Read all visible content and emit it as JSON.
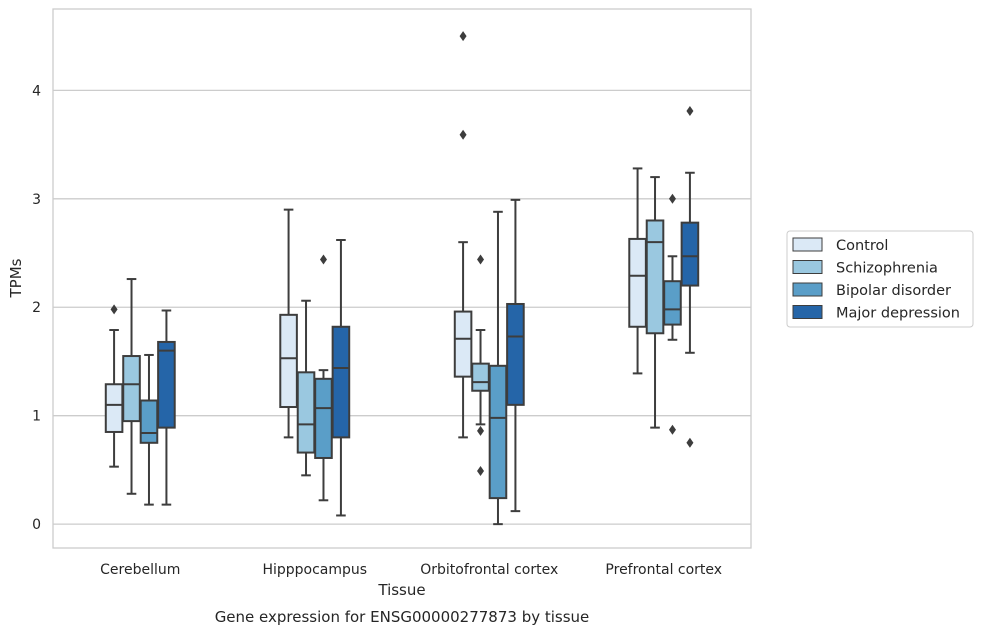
{
  "chart_data": {
    "type": "box",
    "title": "Gene expression for ENSG00000277873 by tissue",
    "xlabel": "Tissue",
    "ylabel": "TPMs",
    "ylim": [
      -0.22,
      4.75
    ],
    "yticks": [
      0,
      1,
      2,
      3,
      4
    ],
    "grid": "horizontal",
    "legend_position": "right",
    "categories": [
      "Cerebellum",
      "Hipppocampus",
      "Orbitofrontal cortex",
      "Prefrontal cortex"
    ],
    "series": [
      {
        "name": "Control",
        "color": "#dbe9f6",
        "boxes": [
          {
            "whislo": 0.53,
            "q1": 0.85,
            "med": 1.1,
            "q3": 1.29,
            "whishi": 1.79,
            "fliers": [
              1.98
            ]
          },
          {
            "whislo": 0.8,
            "q1": 1.08,
            "med": 1.53,
            "q3": 1.93,
            "whishi": 2.9,
            "fliers": []
          },
          {
            "whislo": 0.8,
            "q1": 1.36,
            "med": 1.71,
            "q3": 1.96,
            "whishi": 2.6,
            "fliers": [
              3.59,
              4.5
            ]
          },
          {
            "whislo": 1.39,
            "q1": 1.82,
            "med": 2.29,
            "q3": 2.63,
            "whishi": 3.28,
            "fliers": []
          }
        ]
      },
      {
        "name": "Schizophrenia",
        "color": "#9ac8e0",
        "boxes": [
          {
            "whislo": 0.28,
            "q1": 0.95,
            "med": 1.29,
            "q3": 1.55,
            "whishi": 2.26,
            "fliers": []
          },
          {
            "whislo": 0.45,
            "q1": 0.66,
            "med": 0.92,
            "q3": 1.4,
            "whishi": 2.06,
            "fliers": []
          },
          {
            "whislo": 0.92,
            "q1": 1.23,
            "med": 1.31,
            "q3": 1.48,
            "whishi": 1.79,
            "fliers": [
              2.44,
              0.86,
              0.49
            ]
          },
          {
            "whislo": 0.89,
            "q1": 1.76,
            "med": 2.6,
            "q3": 2.8,
            "whishi": 3.2,
            "fliers": []
          }
        ]
      },
      {
        "name": "Bipolar disorder",
        "color": "#5a9ec8",
        "boxes": [
          {
            "whislo": 0.18,
            "q1": 0.75,
            "med": 0.84,
            "q3": 1.14,
            "whishi": 1.56,
            "fliers": []
          },
          {
            "whislo": 0.22,
            "q1": 0.61,
            "med": 1.07,
            "q3": 1.34,
            "whishi": 1.42,
            "fliers": [
              2.44
            ]
          },
          {
            "whislo": 0.0,
            "q1": 0.24,
            "med": 0.98,
            "q3": 1.46,
            "whishi": 2.88,
            "fliers": []
          },
          {
            "whislo": 1.7,
            "q1": 1.84,
            "med": 1.98,
            "q3": 2.24,
            "whishi": 2.47,
            "fliers": [
              3.0,
              0.87
            ]
          }
        ]
      },
      {
        "name": "Major depression",
        "color": "#2565a8",
        "boxes": [
          {
            "whislo": 0.18,
            "q1": 0.89,
            "med": 1.6,
            "q3": 1.68,
            "whishi": 1.97,
            "fliers": []
          },
          {
            "whislo": 0.08,
            "q1": 0.8,
            "med": 1.44,
            "q3": 1.82,
            "whishi": 2.62,
            "fliers": []
          },
          {
            "whislo": 0.12,
            "q1": 1.1,
            "med": 1.73,
            "q3": 2.03,
            "whishi": 2.99,
            "fliers": []
          },
          {
            "whislo": 1.58,
            "q1": 2.2,
            "med": 2.47,
            "q3": 2.78,
            "whishi": 3.24,
            "fliers": [
              3.81,
              0.75
            ]
          }
        ]
      }
    ]
  }
}
